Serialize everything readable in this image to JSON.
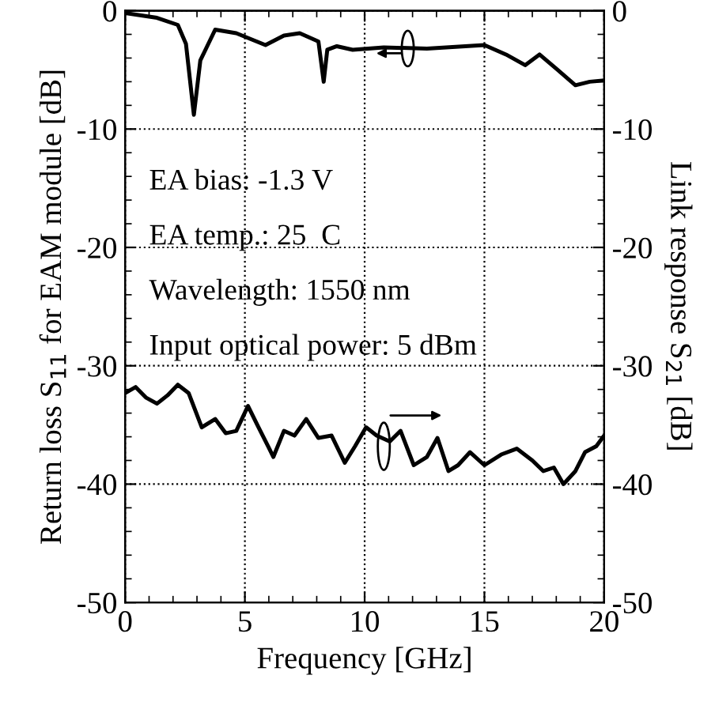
{
  "chart_data": {
    "type": "line",
    "xlabel": "Frequency [GHz]",
    "ylabel": "Return loss S$_{11}$ for EAM module [dB]",
    "y2label": "Link response S$_{21}$ [dB]",
    "xlim": [
      0,
      20
    ],
    "xticks": [
      0,
      5,
      10,
      15,
      20
    ],
    "ylim": [
      -50,
      0
    ],
    "yticks": [
      -50,
      -40,
      -30,
      -20,
      -10,
      0
    ],
    "y2lim": [
      -50,
      0
    ],
    "y2ticks": [
      -50,
      -40,
      -30,
      -20,
      -10,
      0
    ],
    "grid": true,
    "line_style": "solid",
    "marker": "none",
    "annotations": [
      "EA bias: -1.3 V",
      "EA temp.: 25  C",
      "Wavelength: 1550 nm",
      "Input optical power: 5 dBm"
    ],
    "series": [
      {
        "color": "#000000",
        "x": [
          0,
          1.33,
          2.2,
          2.54,
          2.87,
          3.14,
          3.76,
          4.64,
          5.86,
          6.63,
          7.29,
          8.07,
          8.29,
          8.44,
          8.84,
          9.5,
          10.8,
          12.6,
          15.0,
          15.9,
          16.7,
          17.3,
          18.0,
          18.8,
          19.4,
          20
        ],
        "values": [
          -0.2,
          -0.6,
          -1.2,
          -2.8,
          -8.8,
          -4.2,
          -1.6,
          -1.9,
          -2.9,
          -2.1,
          -1.9,
          -2.6,
          -6.0,
          -3.3,
          -3.0,
          -3.3,
          -3.1,
          -3.2,
          -2.9,
          -3.7,
          -4.6,
          -3.7,
          -4.9,
          -6.3,
          -6.0,
          -5.9
        ]
      },
      {
        "color": "#000000",
        "axis": "y2",
        "x": [
          0,
          0.44,
          0.88,
          1.33,
          1.77,
          2.2,
          2.65,
          3.2,
          3.76,
          4.2,
          4.64,
          5.13,
          5.52,
          5.97,
          6.19,
          6.63,
          7.07,
          7.56,
          8.07,
          8.62,
          9.17,
          9.6,
          10.06,
          10.5,
          11.05,
          11.5,
          12.05,
          12.6,
          13.04,
          13.5,
          13.9,
          14.4,
          15.0,
          15.7,
          16.35,
          17.0,
          17.46,
          17.9,
          18.3,
          18.8,
          19.2,
          19.67,
          20
        ],
        "values": [
          -32.3,
          -31.8,
          -32.7,
          -33.2,
          -32.5,
          -31.6,
          -32.3,
          -35.2,
          -34.5,
          -35.7,
          -35.5,
          -33.4,
          -35.0,
          -36.8,
          -37.7,
          -35.5,
          -35.9,
          -34.5,
          -36.1,
          -35.9,
          -38.2,
          -36.8,
          -35.2,
          -35.9,
          -36.4,
          -35.5,
          -38.4,
          -37.7,
          -36.1,
          -38.9,
          -38.4,
          -37.3,
          -38.4,
          -37.5,
          -37.0,
          -38.0,
          -38.9,
          -38.6,
          -40.0,
          -38.9,
          -37.3,
          -36.8,
          -35.9
        ]
      }
    ]
  }
}
